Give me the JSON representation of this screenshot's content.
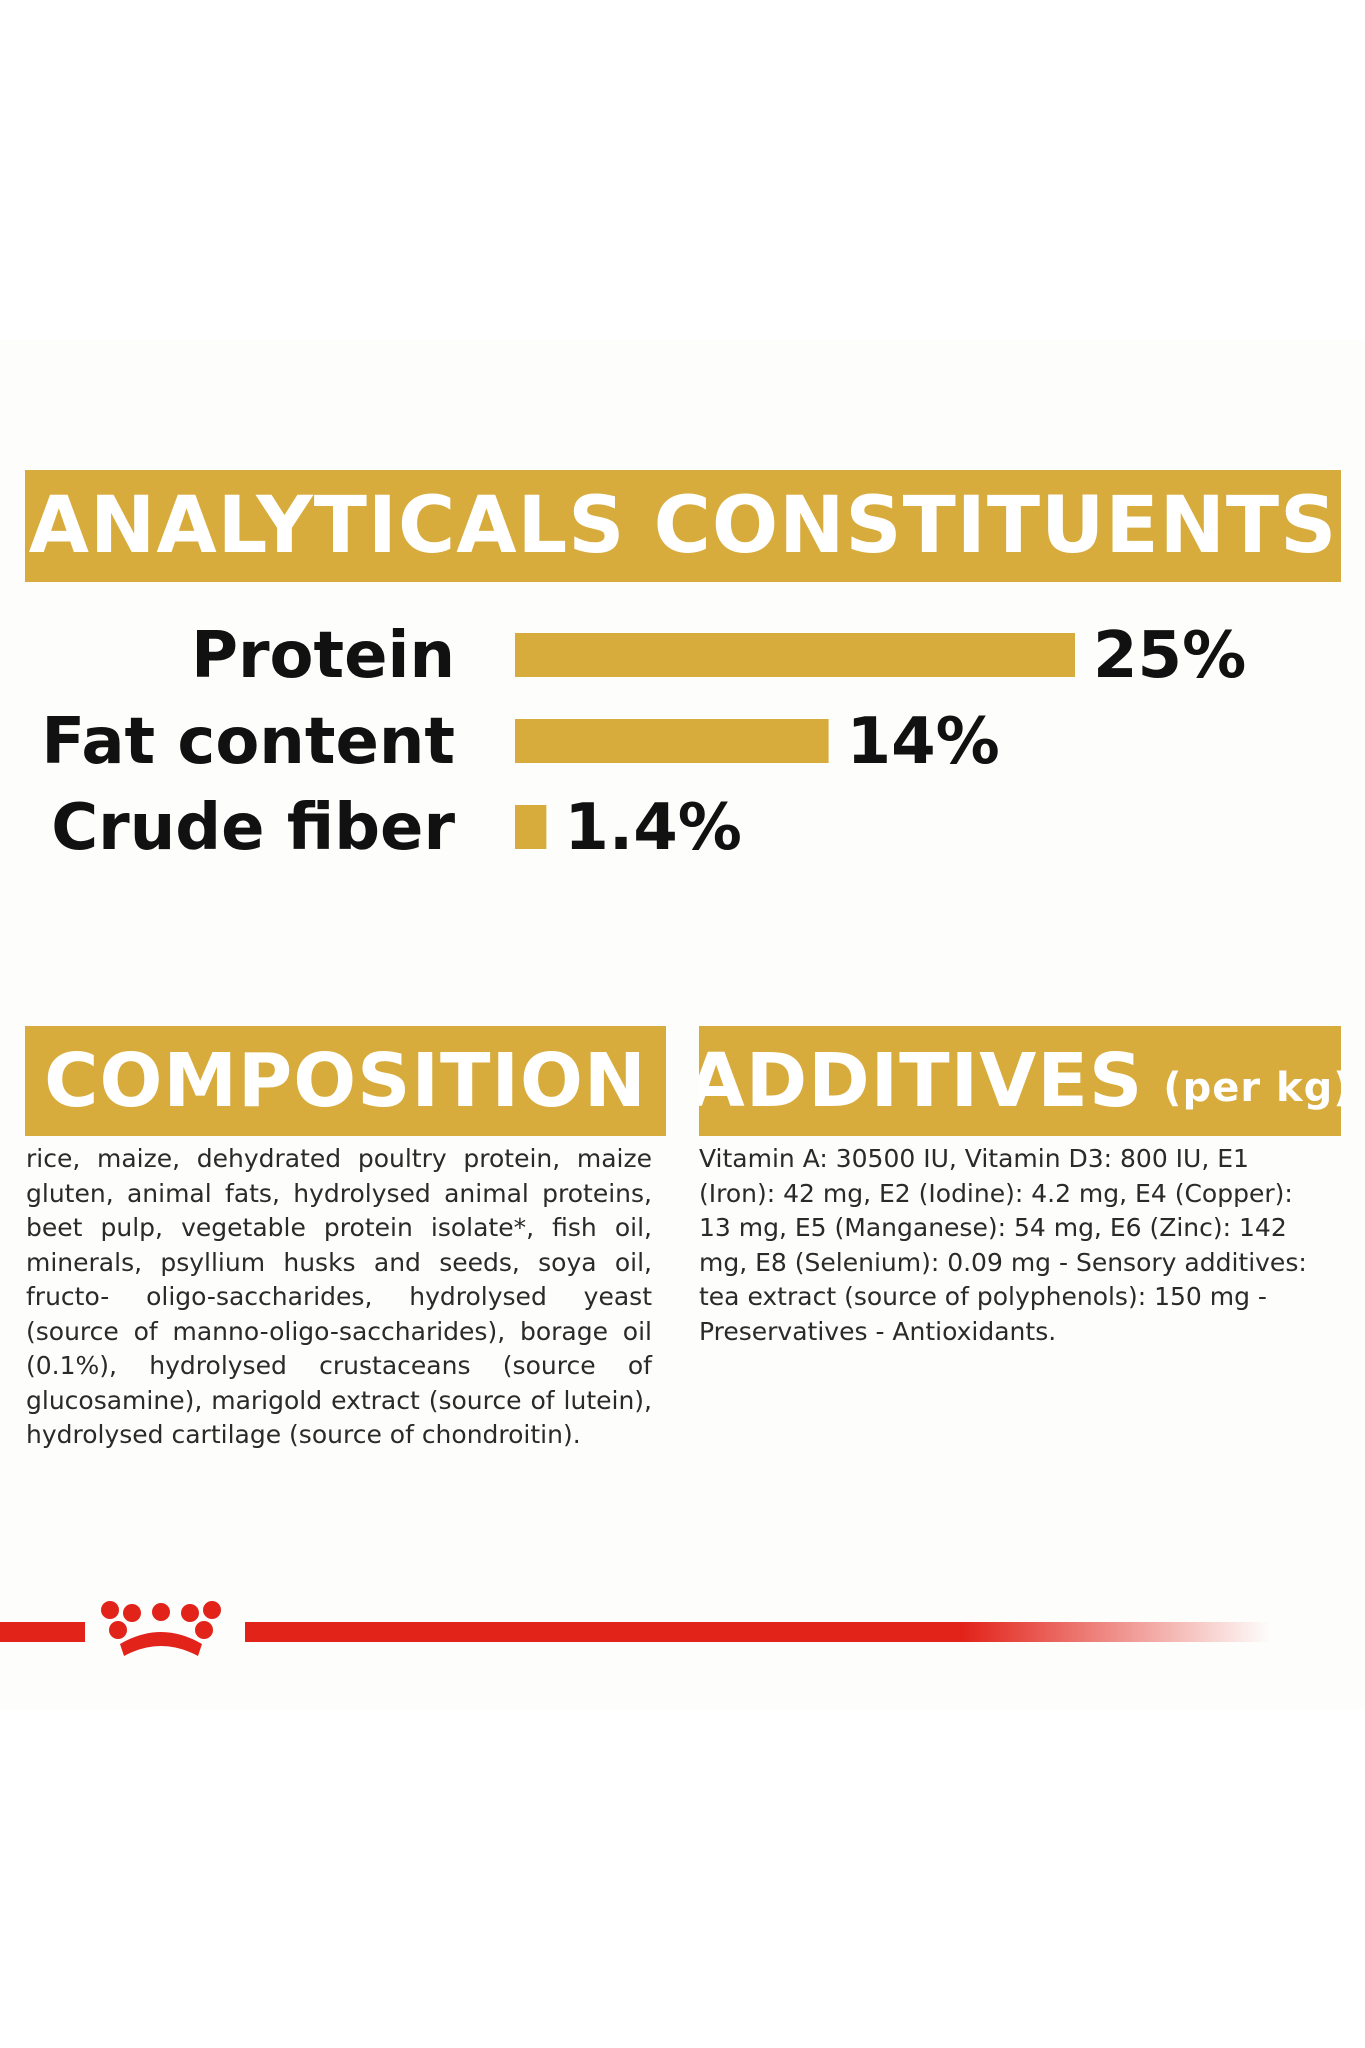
{
  "headings": {
    "analytical": "ANALYTICALS CONSTITUENTS",
    "composition": "COMPOSITION",
    "additives": "ADDITIVES",
    "additives_unit": "(per kg)"
  },
  "chart_data": {
    "type": "bar",
    "orientation": "horizontal",
    "categories": [
      "Protein",
      "Fat content",
      "Crude fiber"
    ],
    "values": [
      25,
      14,
      1.4
    ],
    "value_labels": [
      "25%",
      "14%",
      "1.4%"
    ],
    "unit": "%",
    "bar_color": "#d8ac3c",
    "grid": false
  },
  "composition": {
    "text": "rice, maize, dehydrated poultry protein, maize gluten, animal fats, hydrolysed animal proteins, beet pulp, vegetable protein isolate*, fish oil, minerals, psyllium husks and seeds, soya oil, fructo- oligo-saccharides, hydrolysed yeast (source of manno-oligo-saccharides), borage oil (0.1%), hydrolysed crustaceans (source of glucosamine), marigold extract (source of lutein), hydrolysed cartilage (source of chondroitin)."
  },
  "additives": {
    "text": "Vitamin A: 30500 IU, Vitamin D3: 800 IU, E1 (Iron): 42 mg, E2 (Iodine): 4.2 mg, E4 (Copper): 13 mg, E5 (Manganese): 54 mg, E6 (Zinc): 142 mg, E8 (Selenium): 0.09 mg - Sensory additives: tea extract (source of polyphenols): 150 mg - Preservatives - Antioxidants."
  },
  "colors": {
    "accent_gold": "#d8ac3c",
    "brand_red": "#e2231a"
  },
  "footer": {
    "logo_icon": "crown-logo-icon"
  }
}
